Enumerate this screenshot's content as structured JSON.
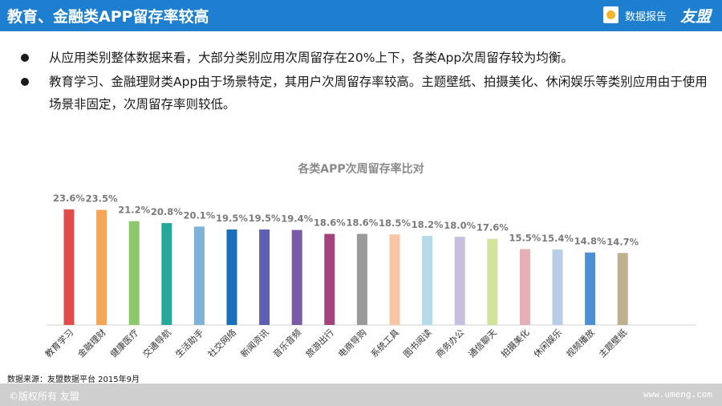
{
  "header": {
    "title": "教育、金融类APP留存率较高",
    "report_label": "数据报告",
    "brand": "友盟",
    "bar_color": "#1e7fd0"
  },
  "bullets": [
    "从应用类别整体数据来看，大部分类别应用次周留存在20%上下，各类App次周留存较为均衡。",
    "教育学习、金融理财类App由于场景特定，其用户次周留存率较高。主题壁纸、拍摄美化、休闲娱乐等类别应用由于使用场景非固定，次周留存率则较低。"
  ],
  "chart_data": {
    "type": "bar",
    "title": "各类APP次周留存率比对",
    "categories": [
      "教育学习",
      "金融理财",
      "健康医疗",
      "交通导航",
      "生活助手",
      "社交网络",
      "新闻资讯",
      "音乐音频",
      "旅游出行",
      "电商导购",
      "系统工具",
      "图书阅读",
      "商务办公",
      "通信聊天",
      "拍摄美化",
      "休闲娱乐",
      "视频播放",
      "主题壁纸"
    ],
    "values": [
      23.6,
      23.5,
      21.2,
      20.8,
      20.1,
      19.5,
      19.5,
      19.4,
      18.6,
      18.6,
      18.5,
      18.2,
      18.0,
      17.6,
      15.5,
      15.4,
      14.8,
      14.7
    ],
    "value_labels": [
      "23.6%",
      "23.5%",
      "21.2%",
      "20.8%",
      "20.1%",
      "19.5%",
      "19.5%",
      "19.4%",
      "18.6%",
      "18.6%",
      "18.5%",
      "18.2%",
      "18.0%",
      "17.6%",
      "15.5%",
      "15.4%",
      "14.8%",
      "14.7%"
    ],
    "colors": [
      "#e04b4b",
      "#f5a555",
      "#8dc86a",
      "#23a89a",
      "#7fb2d9",
      "#1a6fb8",
      "#5d5fb0",
      "#7a5ba8",
      "#a3437c",
      "#9a9a9a",
      "#f7c6a4",
      "#b5daea",
      "#c8bedd",
      "#d2e39b",
      "#e5b0b5",
      "#b8cde6",
      "#4c8fd4",
      "#bfb08f"
    ],
    "ylim": [
      0,
      25
    ],
    "grid": false,
    "legend": "none"
  },
  "source": "数据来源：友盟数据平台 2015年9月",
  "footer": {
    "copyright": "©版权所有  友盟",
    "url": "www.umeng.com"
  }
}
